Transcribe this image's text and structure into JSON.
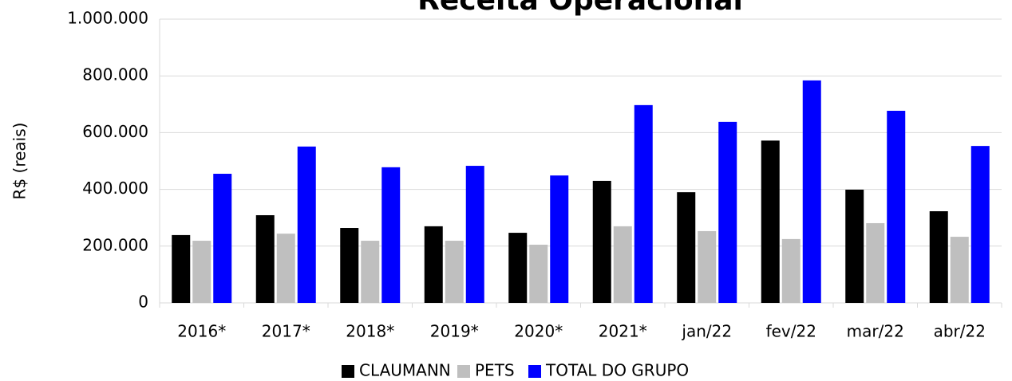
{
  "chart_data": {
    "type": "bar",
    "title": "Receita Operacional",
    "y_label": "R$ (reais)",
    "categories": [
      "2016*",
      "2017*",
      "2018*",
      "2019*",
      "2020*",
      "2021*",
      "jan/22",
      "fev/22",
      "mar/22",
      "abr/22"
    ],
    "series": [
      {
        "name": "CLAUMANN",
        "color": "#000000",
        "values": [
          239000,
          309000,
          264000,
          270000,
          247000,
          430000,
          390000,
          572000,
          399000,
          323000
        ]
      },
      {
        "name": "PETS",
        "color": "#bfbfbf",
        "values": [
          219000,
          244000,
          219000,
          219000,
          205000,
          270000,
          253000,
          225000,
          281000,
          233000
        ]
      },
      {
        "name": "TOTAL DO GRUPO",
        "color": "#0000ff",
        "values": [
          455000,
          551000,
          478000,
          483000,
          449000,
          697000,
          638000,
          784000,
          677000,
          553000
        ]
      }
    ],
    "ylim": [
      0,
      1000000
    ],
    "yticks": [
      0,
      {
        "value": 200000,
        "label": "200.000"
      },
      {
        "value": 400000,
        "label": "400.000"
      },
      {
        "value": 600000,
        "label": "600.000"
      },
      {
        "value": 800000,
        "label": "800.000"
      },
      {
        "value": 1000000,
        "label": "1.000.000"
      }
    ],
    "grid": true,
    "legend": "bottom"
  }
}
